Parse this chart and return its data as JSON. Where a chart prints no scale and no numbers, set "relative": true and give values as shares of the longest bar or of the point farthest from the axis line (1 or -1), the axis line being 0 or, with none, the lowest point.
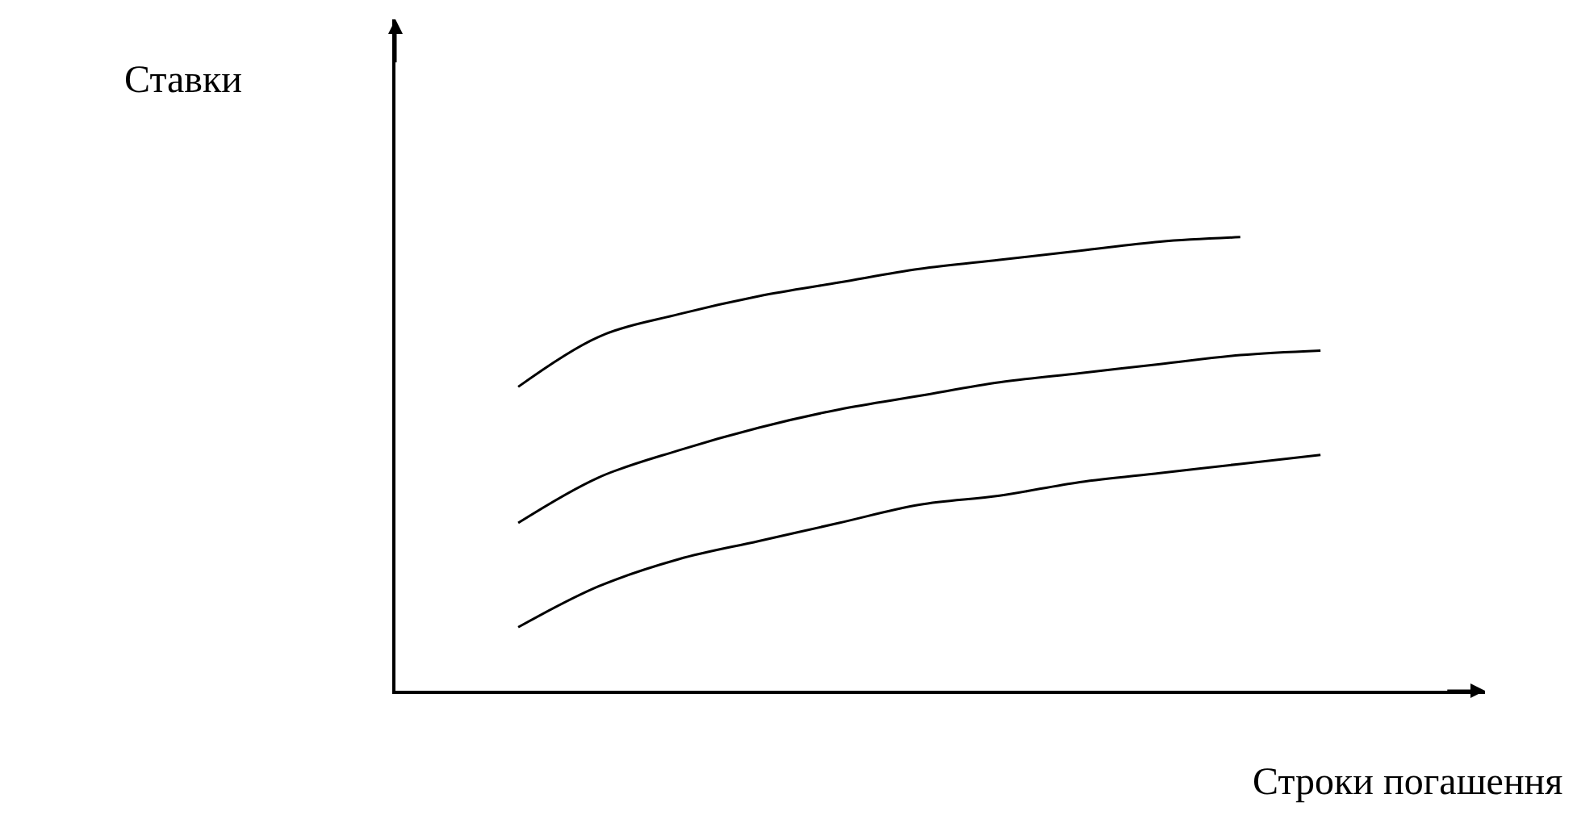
{
  "chart_data": {
    "type": "line",
    "relative": true,
    "xlabel": "Строки погашення",
    "annotations": [
      "Ставки"
    ],
    "categories": [
      null,
      null,
      null,
      null,
      null,
      null,
      null,
      null,
      null,
      null,
      null
    ],
    "series": [
      {
        "color": "#000000",
        "values": [
          0.67,
          0.78,
          0.83,
          0.87,
          0.9,
          0.93,
          0.95,
          0.97,
          0.99,
          1.0,
          null
        ]
      },
      {
        "color": "#000000",
        "values": [
          0.37,
          0.47,
          0.53,
          0.58,
          0.62,
          0.65,
          0.68,
          0.7,
          0.72,
          0.74,
          0.75
        ]
      },
      {
        "color": "#000000",
        "values": [
          0.14,
          0.23,
          0.29,
          0.33,
          0.37,
          0.41,
          0.43,
          0.46,
          0.48,
          0.5,
          0.52
        ]
      }
    ],
    "marker": "none",
    "line_style": "solid"
  }
}
